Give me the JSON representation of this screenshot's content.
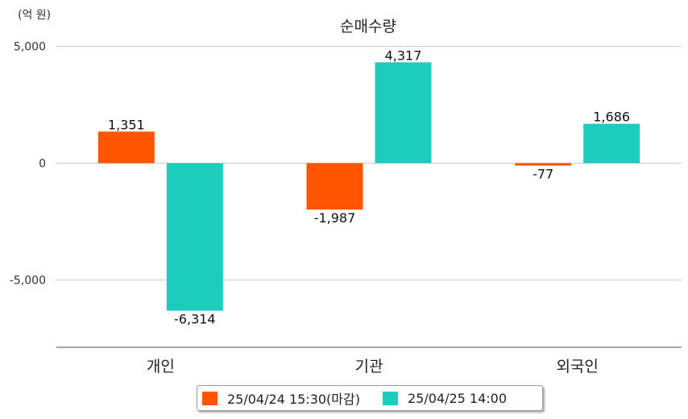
{
  "chart_data": {
    "type": "bar",
    "title": "순매수량",
    "unit_label": "(억 원)",
    "categories": [
      "개인",
      "기관",
      "외국인"
    ],
    "series": [
      {
        "name": "25/04/24 15:30(마감)",
        "color": "#ff5500",
        "values": [
          1351,
          -1987,
          -77
        ]
      },
      {
        "name": "25/04/25 14:00",
        "color": "#1ccdbd",
        "values": [
          -6314,
          4317,
          1686
        ]
      }
    ],
    "y_ticks": [
      5000,
      0,
      -5000
    ],
    "y_tick_labels": [
      "5,000",
      "0",
      "-5,000"
    ],
    "value_labels": [
      [
        "1,351",
        "-1,987",
        "-77"
      ],
      [
        "-6,314",
        "4,317",
        "1,686"
      ]
    ],
    "ylim": [
      -7800,
      5000
    ],
    "grid": true,
    "legend_position": "bottom"
  }
}
